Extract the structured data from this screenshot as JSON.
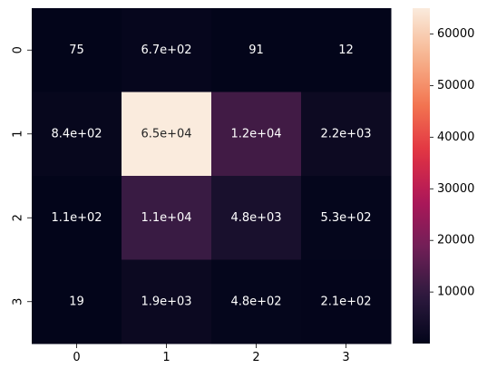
{
  "chart_data": {
    "type": "heatmap",
    "x_tick_labels": [
      "0",
      "1",
      "2",
      "3"
    ],
    "y_tick_labels": [
      "0",
      "1",
      "2",
      "3"
    ],
    "values": [
      [
        75,
        670,
        91,
        12
      ],
      [
        840,
        65000,
        12000,
        2200
      ],
      [
        110,
        11000,
        4800,
        530
      ],
      [
        19,
        1900,
        480,
        210
      ]
    ],
    "annotations": [
      [
        "75",
        "6.7e+02",
        "91",
        "12"
      ],
      [
        "8.4e+02",
        "6.5e+04",
        "1.2e+04",
        "2.2e+03"
      ],
      [
        "1.1e+02",
        "1.1e+04",
        "4.8e+03",
        "5.3e+02"
      ],
      [
        "19",
        "1.9e+03",
        "4.8e+02",
        "2.1e+02"
      ]
    ],
    "colorbar": {
      "min": 12,
      "max": 65000,
      "tick_values": [
        10000,
        20000,
        30000,
        40000,
        50000,
        60000
      ],
      "tick_labels": [
        "10000",
        "20000",
        "30000",
        "40000",
        "50000",
        "60000"
      ]
    },
    "colormap": "rocket",
    "colormap_stops": [
      "#03051a",
      "#2d1a3e",
      "#701f57",
      "#ae1759",
      "#e13342",
      "#f37651",
      "#f6b48f",
      "#faebdd"
    ],
    "annotation_text_colors": {
      "on_dark": "#ffffff",
      "on_light": "#262626"
    },
    "grid": false,
    "legend": "colorbar-right"
  }
}
